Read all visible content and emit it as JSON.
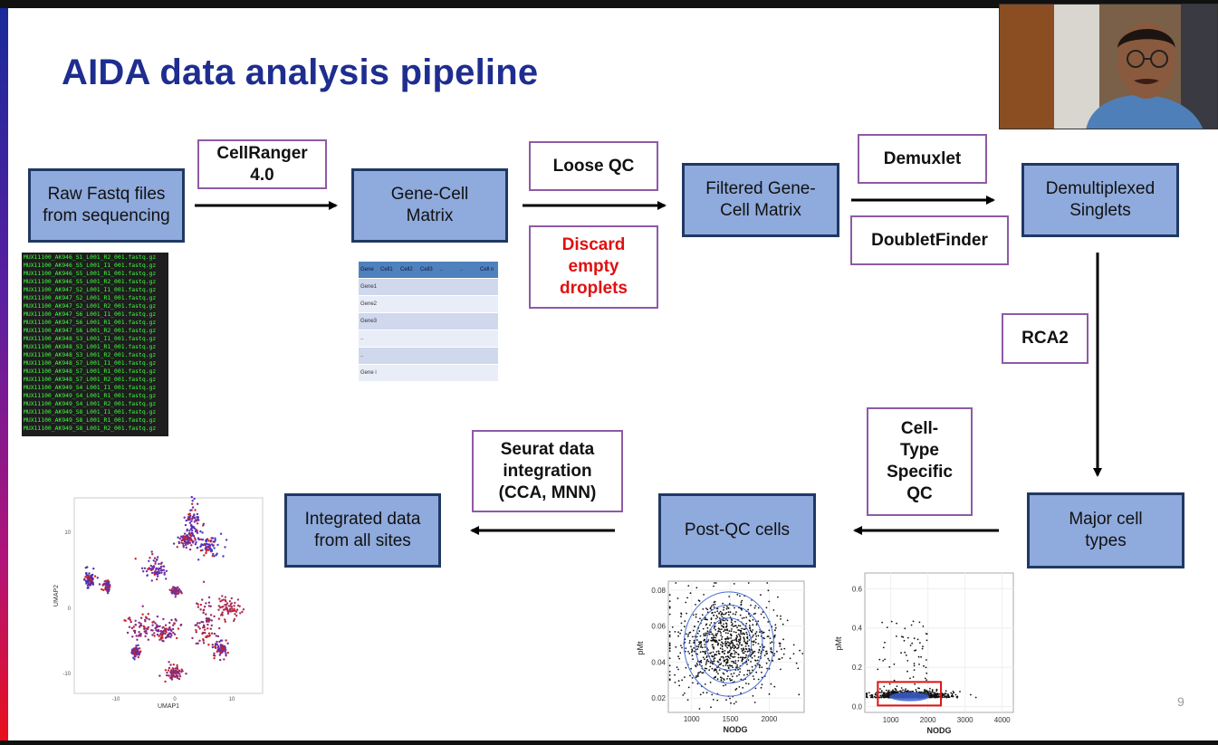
{
  "slide": {
    "title": "AIDA data analysis pipeline",
    "page_number": "9"
  },
  "nodes": {
    "raw_fastq": "Raw Fastq files from sequencing",
    "gene_cell_matrix": "Gene-Cell Matrix",
    "filtered_matrix": "Filtered Gene-Cell Matrix",
    "demultiplexed": "Demultiplexed Singlets",
    "major_cell_types": "Major cell types",
    "post_qc": "Post-QC cells",
    "integrated": "Integrated data from all sites"
  },
  "steps": {
    "cellranger": "CellRanger 4.0",
    "loose_qc": "Loose QC",
    "discard_empty": "Discard empty droplets",
    "demuxlet": "Demuxlet",
    "doubletfinder": "DoubletFinder",
    "rca2": "RCA2",
    "celltype_qc": "Cell-Type Specific QC",
    "seurat": "Seurat data integration (CCA, MNN)"
  },
  "fastq_files": [
    "MUX11100_AK946_S1_L001_R2_001.fastq.gz",
    "MUX11100_AK946_S5_L001_I1_001.fastq.gz",
    "MUX11100_AK946_S5_L001_R1_001.fastq.gz",
    "MUX11100_AK946_S5_L001_R2_001.fastq.gz",
    "MUX11100_AK947_S2_L001_I1_001.fastq.gz",
    "MUX11100_AK947_S2_L001_R1_001.fastq.gz",
    "MUX11100_AK947_S2_L001_R2_001.fastq.gz",
    "MUX11100_AK947_S6_L001_I1_001.fastq.gz",
    "MUX11100_AK947_S6_L001_R1_001.fastq.gz",
    "MUX11100_AK947_S6_L001_R2_001.fastq.gz",
    "MUX11100_AK948_S3_L001_I1_001.fastq.gz",
    "MUX11100_AK948_S3_L001_R1_001.fastq.gz",
    "MUX11100_AK948_S3_L001_R2_001.fastq.gz",
    "MUX11100_AK948_S7_L001_I1_001.fastq.gz",
    "MUX11100_AK948_S7_L001_R1_001.fastq.gz",
    "MUX11100_AK948_S7_L001_R2_001.fastq.gz",
    "MUX11100_AK949_S4_L001_I1_001.fastq.gz",
    "MUX11100_AK949_S4_L001_R1_001.fastq.gz",
    "MUX11100_AK949_S4_L001_R2_001.fastq.gz",
    "MUX11100_AK949_S8_L001_I1_001.fastq.gz",
    "MUX11100_AK949_S8_L001_R1_001.fastq.gz",
    "MUX11100_AK949_S8_L001_R2_001.fastq.gz"
  ],
  "gene_table": {
    "header": [
      "Gene",
      "Cell1",
      "Cell2",
      "Cell3",
      "..",
      "..",
      "Cell n"
    ],
    "rows": [
      "Gene1",
      "Gene2",
      "Gene3",
      "..",
      "..",
      "Gene i"
    ]
  },
  "umap": {
    "xlabel": "UMAP1",
    "ylabel": "UMAP2",
    "xticks": [
      "-10",
      "0",
      "10"
    ],
    "yticks": [
      "10",
      "0",
      "-10"
    ]
  },
  "postqc_plot": {
    "xlabel": "NODG",
    "ylabel": "pMt",
    "xticks": [
      "1000",
      "1500",
      "2000"
    ],
    "yticks": [
      "0.08",
      "0.06",
      "0.04",
      "0.02"
    ]
  },
  "celltype_plot": {
    "xlabel": "NODG",
    "ylabel": "pMt",
    "xticks": [
      "1000",
      "2000",
      "3000",
      "4000"
    ],
    "yticks": [
      "0.6",
      "0.4",
      "0.2",
      "0.0"
    ]
  },
  "colors": {
    "title": "#1e2d8f",
    "node_fill": "#8faadc",
    "node_border": "#203864",
    "label_border": "#8e5aa6",
    "alert_text": "#e01010"
  }
}
